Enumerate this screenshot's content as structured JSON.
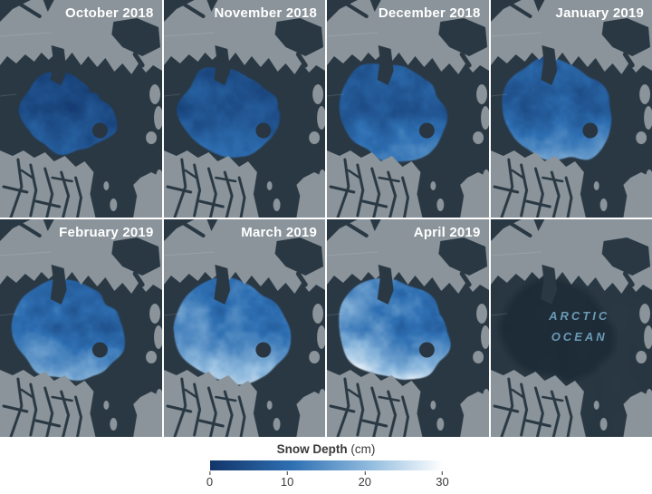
{
  "panels": [
    {
      "label": "October 2018",
      "render": {
        "type": "ice",
        "mean_depth_cm": 7.5,
        "depth_variation_cm": 6,
        "deep_snow_bias_cm": 5,
        "left_bias_cm": 0,
        "extent": 0.88,
        "edge_lumpiness": 12,
        "top_gap": 12
      }
    },
    {
      "label": "November 2018",
      "render": {
        "type": "ice",
        "mean_depth_cm": 8.5,
        "depth_variation_cm": 6,
        "deep_snow_bias_cm": 6,
        "left_bias_cm": 0,
        "extent": 0.93,
        "edge_lumpiness": 11,
        "top_gap": 7
      }
    },
    {
      "label": "December 2018",
      "render": {
        "type": "ice",
        "mean_depth_cm": 10,
        "depth_variation_cm": 6.5,
        "deep_snow_bias_cm": 8,
        "left_bias_cm": 0,
        "extent": 0.97,
        "edge_lumpiness": 10,
        "top_gap": 3
      }
    },
    {
      "label": "January 2019",
      "render": {
        "type": "ice",
        "mean_depth_cm": 11.5,
        "depth_variation_cm": 7,
        "deep_snow_bias_cm": 11,
        "left_bias_cm": 0,
        "extent": 1.0,
        "edge_lumpiness": 9,
        "top_gap": 0
      }
    },
    {
      "label": "February 2019",
      "render": {
        "type": "ice",
        "mean_depth_cm": 12.5,
        "depth_variation_cm": 7.5,
        "deep_snow_bias_cm": 12,
        "left_bias_cm": 3,
        "extent": 1.0,
        "edge_lumpiness": 9,
        "top_gap": 0
      }
    },
    {
      "label": "March 2019",
      "render": {
        "type": "ice",
        "mean_depth_cm": 14.5,
        "depth_variation_cm": 8,
        "deep_snow_bias_cm": 13,
        "left_bias_cm": 5,
        "extent": 1.03,
        "edge_lumpiness": 9,
        "top_gap": 0
      }
    },
    {
      "label": "April 2019",
      "render": {
        "type": "ice",
        "mean_depth_cm": 15.5,
        "depth_variation_cm": 9,
        "deep_snow_bias_cm": 14,
        "left_bias_cm": 6,
        "extent": 1.0,
        "edge_lumpiness": 10,
        "top_gap": 0
      }
    },
    {
      "label": "",
      "ocean_label": [
        "ARCTIC",
        "OCEAN"
      ],
      "render": {
        "type": "basemap"
      }
    }
  ],
  "legend": {
    "title_bold": "Snow Depth",
    "title_unit": " (cm)",
    "min_cm": 0,
    "max_cm": 30,
    "ticks": [
      "0",
      "10",
      "20",
      "30"
    ]
  },
  "colors": {
    "ocean": "#2a3844",
    "deep_basin": "#1f2d38",
    "land": "#8a949a",
    "pole_hole": "#293540",
    "panel_label": "#ffffff",
    "ocean_label_text": "#6a9ab5",
    "legend_text": "#3a3a3a",
    "divider": "#ffffff",
    "colormap": [
      "#123569",
      "#2e6fb2",
      "#8fbade",
      "#ffffff"
    ]
  }
}
